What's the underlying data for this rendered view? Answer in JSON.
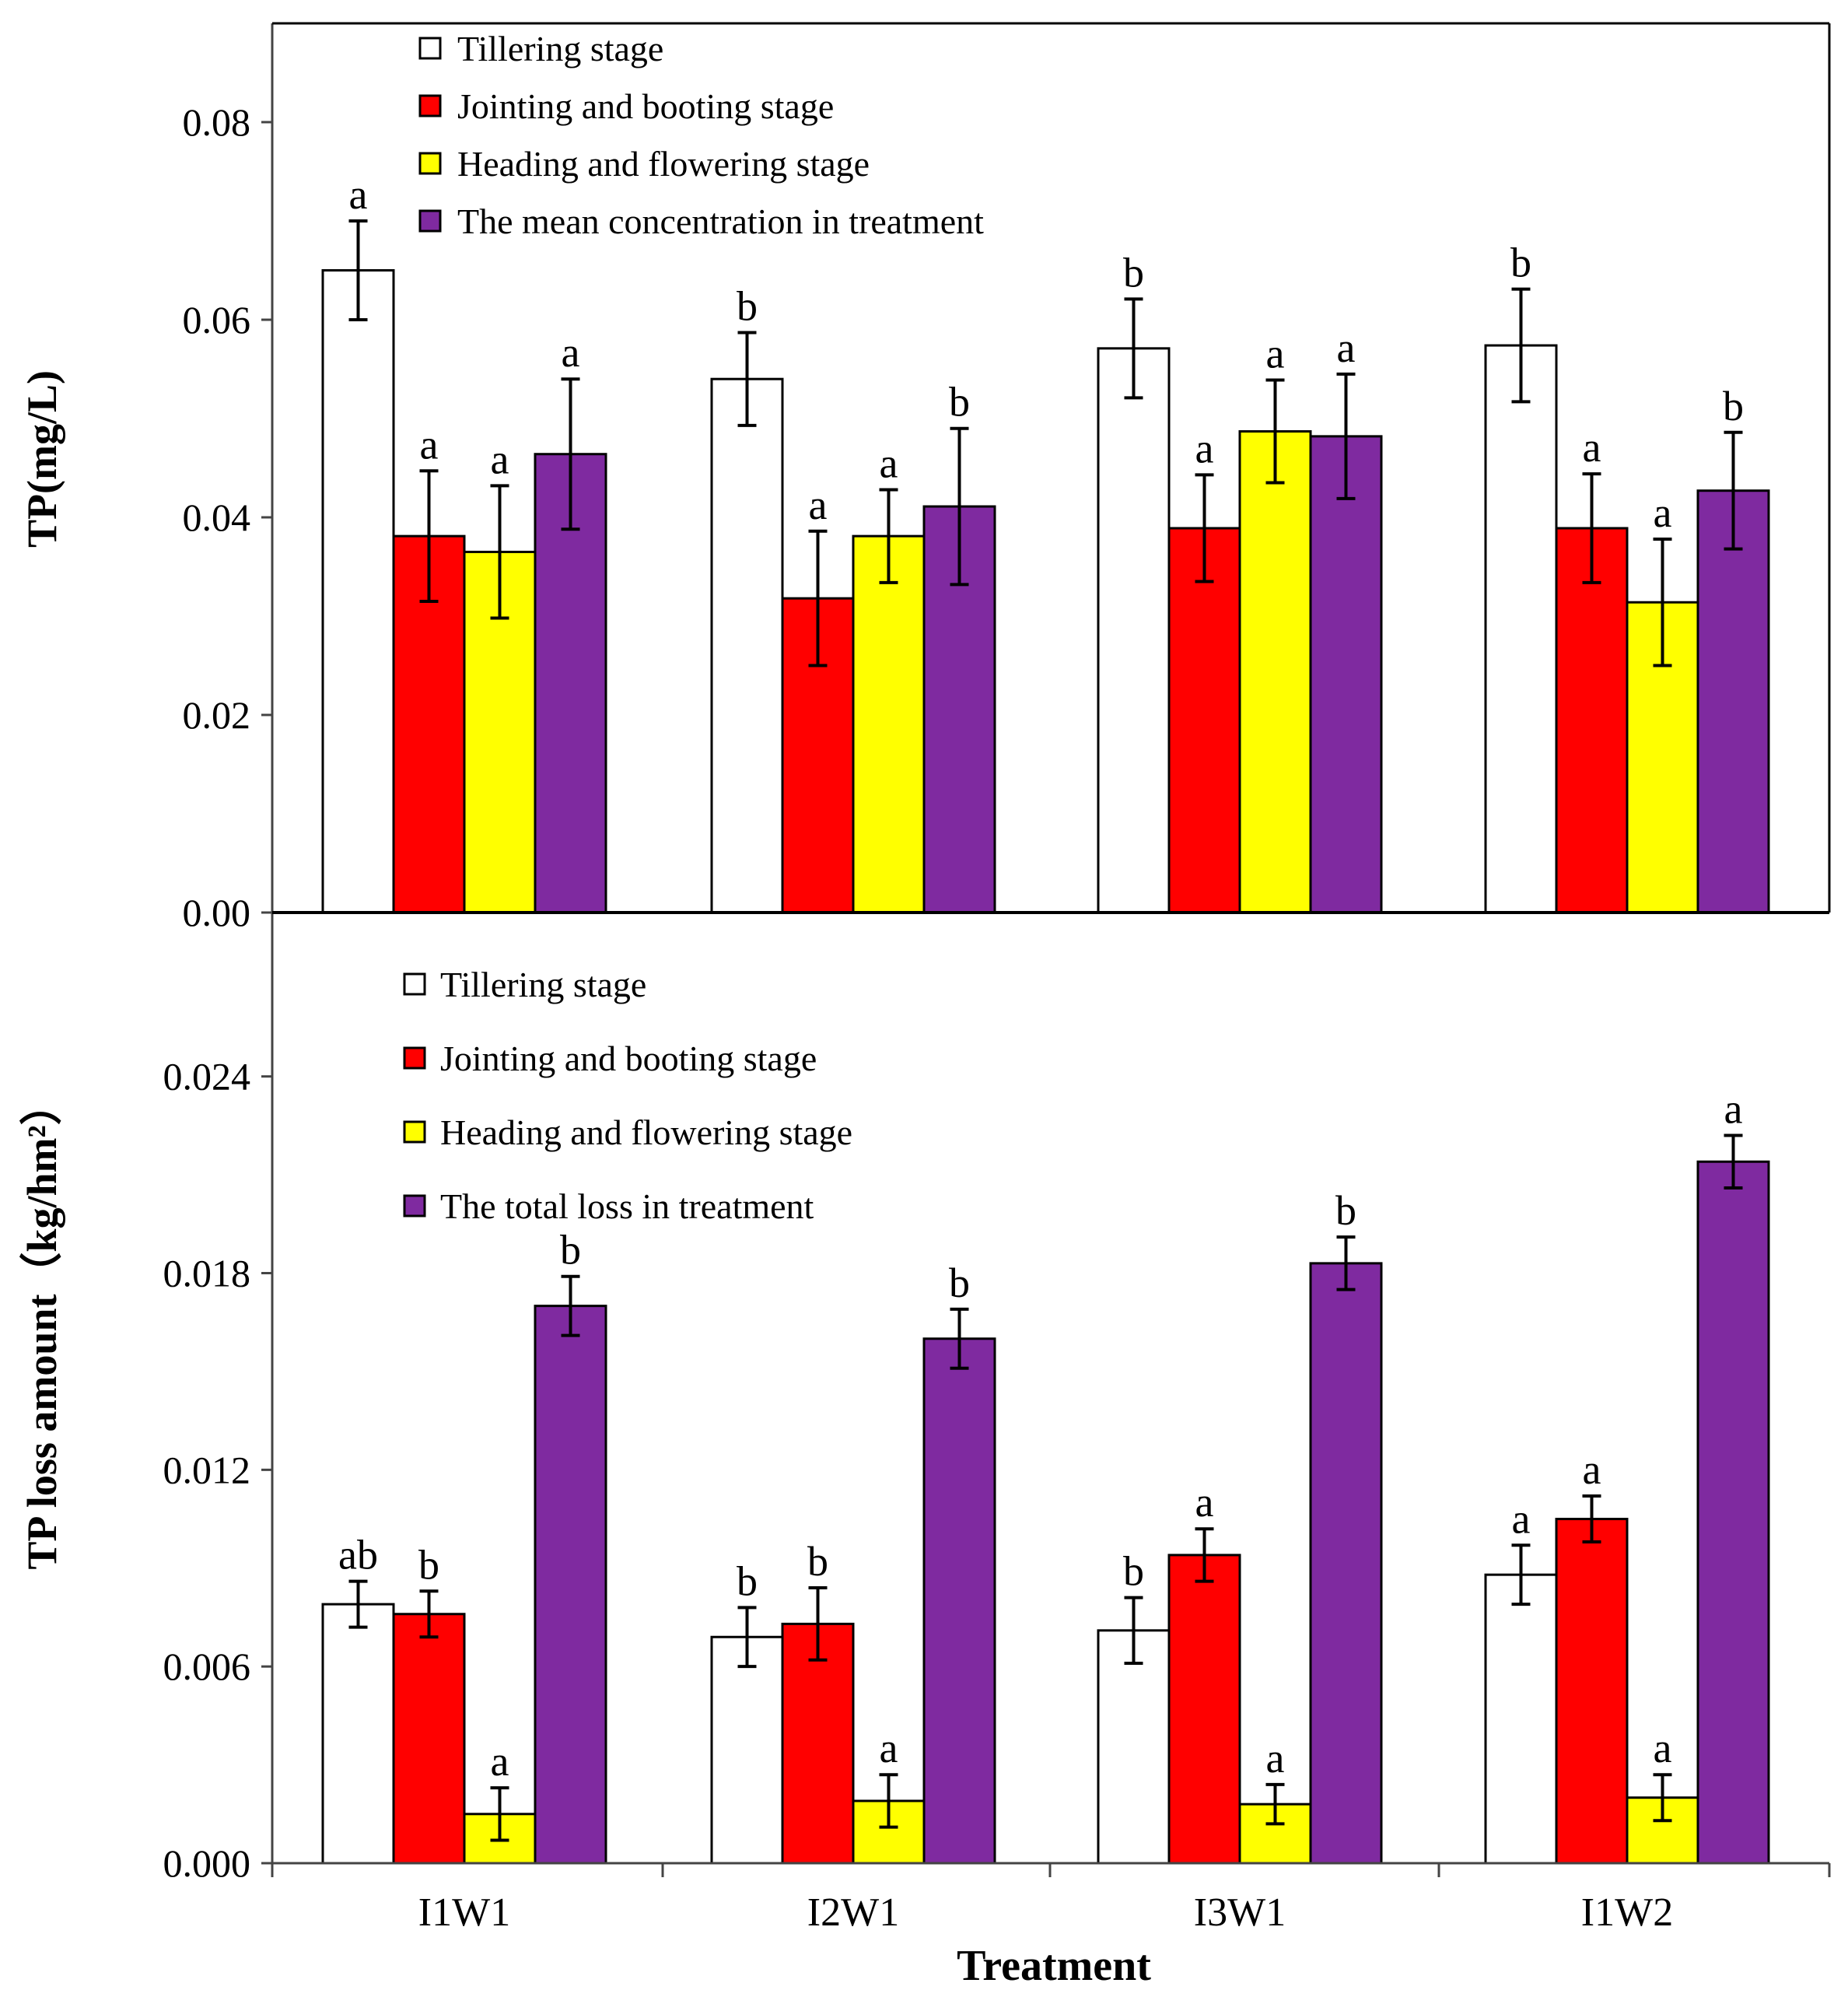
{
  "chart_data": [
    {
      "type": "bar",
      "panel": "top",
      "ylabel": "TP(mg/L)",
      "ylim": [
        0,
        0.09
      ],
      "yticks": [
        "0.00",
        "0.02",
        "0.04",
        "0.06",
        "0.08"
      ],
      "categories": [
        "I1W1",
        "I2W1",
        "I3W1",
        "I1W2"
      ],
      "series": [
        {
          "name": "Tillering stage",
          "color": "#ffffff",
          "values": [
            0.065,
            0.054,
            0.0571,
            0.0574
          ],
          "errors": [
            0.005,
            0.0047,
            0.005,
            0.0057
          ],
          "labels": [
            "a",
            "b",
            "b",
            "b"
          ]
        },
        {
          "name": "Jointing and booting stage",
          "color": "#ff0000",
          "values": [
            0.0381,
            0.0318,
            0.0389,
            0.0389
          ],
          "errors": [
            0.0066,
            0.0068,
            0.0054,
            0.0055
          ],
          "labels": [
            "a",
            "a",
            "a",
            "a"
          ]
        },
        {
          "name": "Heading and flowering stage",
          "color": "#ffff00",
          "values": [
            0.0365,
            0.0381,
            0.0487,
            0.0314
          ],
          "errors": [
            0.0067,
            0.0047,
            0.0052,
            0.0064
          ],
          "labels": [
            "a",
            "a",
            "a",
            "a"
          ]
        },
        {
          "name": "The mean concentration in treatment",
          "color": "#7f2aa0",
          "values": [
            0.0464,
            0.0411,
            0.0482,
            0.0427
          ],
          "errors": [
            0.0076,
            0.0079,
            0.0063,
            0.0059
          ],
          "labels": [
            "a",
            "b",
            "a",
            "b"
          ]
        }
      ]
    },
    {
      "type": "bar",
      "panel": "bottom",
      "ylabel": "TP loss amount（kg/hm²）",
      "xlabel": "Treatment",
      "ylim": [
        0,
        0.029
      ],
      "yticks": [
        "0.000",
        "0.006",
        "0.012",
        "0.018",
        "0.024"
      ],
      "categories": [
        "I1W1",
        "I2W1",
        "I3W1",
        "I1W2"
      ],
      "series": [
        {
          "name": "Tillering stage",
          "color": "#ffffff",
          "values": [
            0.0079,
            0.0069,
            0.0071,
            0.0088
          ],
          "errors": [
            0.0007,
            0.0009,
            0.001,
            0.0009
          ],
          "labels": [
            "ab",
            "b",
            "b",
            "a"
          ]
        },
        {
          "name": "Jointing and booting stage",
          "color": "#ff0000",
          "values": [
            0.0076,
            0.0073,
            0.0094,
            0.0105
          ],
          "errors": [
            0.0007,
            0.0011,
            0.0008,
            0.0007
          ],
          "labels": [
            "b",
            "b",
            "a",
            "a"
          ]
        },
        {
          "name": "Heading and flowering stage",
          "color": "#ffff00",
          "values": [
            0.0015,
            0.0019,
            0.0018,
            0.002
          ],
          "errors": [
            0.0008,
            0.0008,
            0.0006,
            0.0007
          ],
          "labels": [
            "a",
            "a",
            "a",
            "a"
          ]
        },
        {
          "name": "The total loss in treatment",
          "color": "#7f2aa0",
          "values": [
            0.017,
            0.016,
            0.0183,
            0.0214
          ],
          "errors": [
            0.0009,
            0.0009,
            0.0008,
            0.0008
          ],
          "labels": [
            "b",
            "b",
            "b",
            "a"
          ]
        }
      ]
    }
  ]
}
